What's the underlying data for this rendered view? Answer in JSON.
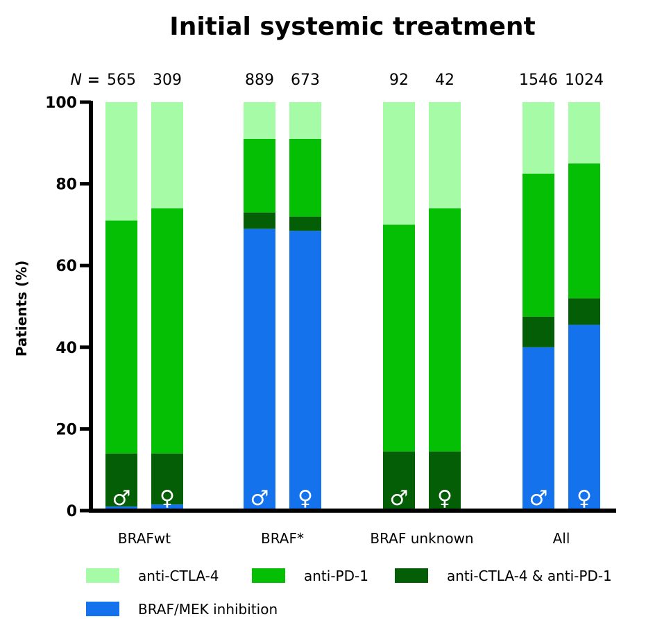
{
  "chart_data": {
    "type": "bar",
    "stacked": true,
    "title": "Initial systemic treatment",
    "ylabel": "Patients (%)",
    "ylim": [
      0,
      100
    ],
    "yticks": [
      0,
      20,
      40,
      60,
      80,
      100
    ],
    "n_prefix": "N",
    "n_equals": "=",
    "groups": [
      {
        "label": "BRAFwt",
        "bars": [
          {
            "sex": "♂",
            "n": "565",
            "values": [
              1,
              13,
              57,
              29
            ]
          },
          {
            "sex": "♀",
            "n": "309",
            "values": [
              1.5,
              12.5,
              60,
              26
            ]
          }
        ]
      },
      {
        "label": "BRAF*",
        "bars": [
          {
            "sex": "♂",
            "n": "889",
            "values": [
              69,
              4,
              18,
              9
            ]
          },
          {
            "sex": "♀",
            "n": "673",
            "values": [
              68.5,
              3.5,
              19,
              9
            ]
          }
        ]
      },
      {
        "label": "BRAF unknown",
        "bars": [
          {
            "sex": "♂",
            "n": "92",
            "values": [
              0.5,
              14,
              55.5,
              30
            ]
          },
          {
            "sex": "♀",
            "n": "42",
            "values": [
              0.5,
              14,
              59.5,
              26
            ]
          }
        ]
      },
      {
        "label": "All",
        "bars": [
          {
            "sex": "♂",
            "n": "1546",
            "values": [
              40,
              7.5,
              35,
              17.5
            ]
          },
          {
            "sex": "♀",
            "n": "1024",
            "values": [
              45.5,
              6.5,
              33,
              15
            ]
          }
        ]
      }
    ],
    "series": [
      {
        "name": "BRAF/MEK inhibition",
        "color": "#1473EC"
      },
      {
        "name": "anti-CTLA-4 & anti-PD-1",
        "color": "#045E05"
      },
      {
        "name": "anti-PD-1",
        "color": "#04BF04"
      },
      {
        "name": "anti-CTLA-4",
        "color": "#A6FBA6"
      }
    ],
    "legend": {
      "placement": "bottom",
      "order": [
        "anti-CTLA-4",
        "anti-PD-1",
        "anti-CTLA-4 & anti-PD-1",
        "BRAF/MEK inhibition"
      ]
    },
    "grid": false
  }
}
